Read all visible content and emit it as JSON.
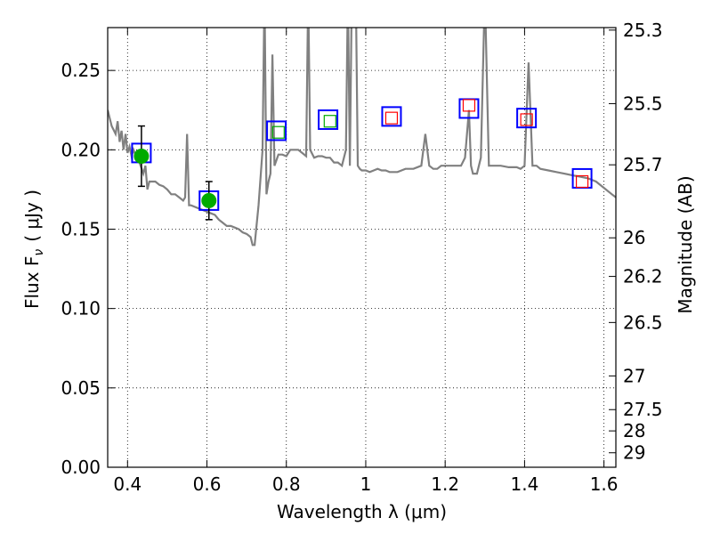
{
  "chart_data": {
    "type": "scatter",
    "xlabel": "Wavelength  λ (μm)",
    "ylabel": "Flux  F",
    "ylabel_subscript": "ν",
    "ylabel_units": "( μJy )",
    "y2label": "Magnitude (AB)",
    "xlim": [
      0.35,
      1.63
    ],
    "ylim": [
      0.0,
      0.277
    ],
    "grid": true,
    "x_ticks": [
      0.4,
      0.6,
      0.8,
      1.0,
      1.2,
      1.4,
      1.6
    ],
    "x_tick_labels": [
      "0.4",
      "0.6",
      "0.8",
      "1",
      "1.2",
      "1.4",
      "1.6"
    ],
    "y_ticks": [
      0.0,
      0.05,
      0.1,
      0.15,
      0.2,
      0.25
    ],
    "y_tick_labels": [
      "0.00",
      "0.05",
      "0.10",
      "0.15",
      "0.20",
      "0.25"
    ],
    "mag_ticks": [
      25.3,
      25.5,
      25.7,
      26,
      26.2,
      26.5,
      27,
      27.5,
      28,
      29
    ],
    "mag_tick_labels": [
      "25.3",
      "25.5",
      "25.7",
      "26",
      "26.2",
      "26.5",
      "27",
      "27.5",
      "28",
      "29"
    ],
    "colors": {
      "model": "#808080",
      "observed": "#00aa00",
      "model_photometry": "#0000ff",
      "predicted_green": "#00aa00",
      "predicted_red": "#ff0000"
    },
    "model_spectrum": [
      [
        0.35,
        0.225
      ],
      [
        0.36,
        0.215
      ],
      [
        0.37,
        0.21
      ],
      [
        0.375,
        0.218
      ],
      [
        0.38,
        0.205
      ],
      [
        0.385,
        0.212
      ],
      [
        0.39,
        0.2
      ],
      [
        0.395,
        0.21
      ],
      [
        0.4,
        0.198
      ],
      [
        0.405,
        0.202
      ],
      [
        0.41,
        0.196
      ],
      [
        0.415,
        0.2
      ],
      [
        0.42,
        0.197
      ],
      [
        0.43,
        0.192
      ],
      [
        0.44,
        0.185
      ],
      [
        0.445,
        0.19
      ],
      [
        0.45,
        0.175
      ],
      [
        0.455,
        0.18
      ],
      [
        0.46,
        0.18
      ],
      [
        0.47,
        0.18
      ],
      [
        0.48,
        0.178
      ],
      [
        0.49,
        0.177
      ],
      [
        0.5,
        0.175
      ],
      [
        0.51,
        0.172
      ],
      [
        0.52,
        0.172
      ],
      [
        0.53,
        0.17
      ],
      [
        0.54,
        0.168
      ],
      [
        0.545,
        0.17
      ],
      [
        0.55,
        0.21
      ],
      [
        0.555,
        0.165
      ],
      [
        0.56,
        0.165
      ],
      [
        0.57,
        0.164
      ],
      [
        0.58,
        0.163
      ],
      [
        0.59,
        0.162
      ],
      [
        0.6,
        0.161
      ],
      [
        0.61,
        0.16
      ],
      [
        0.62,
        0.159
      ],
      [
        0.63,
        0.156
      ],
      [
        0.64,
        0.154
      ],
      [
        0.65,
        0.152
      ],
      [
        0.66,
        0.152
      ],
      [
        0.67,
        0.151
      ],
      [
        0.68,
        0.15
      ],
      [
        0.69,
        0.148
      ],
      [
        0.7,
        0.147
      ],
      [
        0.71,
        0.145
      ],
      [
        0.715,
        0.14
      ],
      [
        0.72,
        0.14
      ],
      [
        0.73,
        0.165
      ],
      [
        0.74,
        0.2
      ],
      [
        0.745,
        0.3
      ],
      [
        0.75,
        0.172
      ],
      [
        0.755,
        0.18
      ],
      [
        0.76,
        0.185
      ],
      [
        0.765,
        0.26
      ],
      [
        0.77,
        0.19
      ],
      [
        0.78,
        0.197
      ],
      [
        0.79,
        0.197
      ],
      [
        0.8,
        0.196
      ],
      [
        0.81,
        0.2
      ],
      [
        0.82,
        0.2
      ],
      [
        0.83,
        0.2
      ],
      [
        0.84,
        0.198
      ],
      [
        0.85,
        0.196
      ],
      [
        0.855,
        0.3
      ],
      [
        0.86,
        0.2
      ],
      [
        0.87,
        0.195
      ],
      [
        0.88,
        0.196
      ],
      [
        0.89,
        0.196
      ],
      [
        0.9,
        0.195
      ],
      [
        0.91,
        0.195
      ],
      [
        0.92,
        0.192
      ],
      [
        0.93,
        0.192
      ],
      [
        0.94,
        0.19
      ],
      [
        0.95,
        0.2
      ],
      [
        0.955,
        0.3
      ],
      [
        0.96,
        0.19
      ],
      [
        0.965,
        0.3
      ],
      [
        0.975,
        0.3
      ],
      [
        0.98,
        0.19
      ],
      [
        0.985,
        0.188
      ],
      [
        0.99,
        0.187
      ],
      [
        1.0,
        0.187
      ],
      [
        1.01,
        0.186
      ],
      [
        1.02,
        0.187
      ],
      [
        1.03,
        0.188
      ],
      [
        1.04,
        0.187
      ],
      [
        1.05,
        0.187
      ],
      [
        1.06,
        0.186
      ],
      [
        1.07,
        0.186
      ],
      [
        1.08,
        0.186
      ],
      [
        1.09,
        0.187
      ],
      [
        1.1,
        0.188
      ],
      [
        1.12,
        0.188
      ],
      [
        1.14,
        0.19
      ],
      [
        1.15,
        0.21
      ],
      [
        1.16,
        0.19
      ],
      [
        1.17,
        0.188
      ],
      [
        1.18,
        0.188
      ],
      [
        1.19,
        0.19
      ],
      [
        1.2,
        0.19
      ],
      [
        1.22,
        0.19
      ],
      [
        1.24,
        0.19
      ],
      [
        1.25,
        0.195
      ],
      [
        1.26,
        0.225
      ],
      [
        1.265,
        0.19
      ],
      [
        1.27,
        0.185
      ],
      [
        1.28,
        0.185
      ],
      [
        1.29,
        0.195
      ],
      [
        1.3,
        0.3
      ],
      [
        1.31,
        0.19
      ],
      [
        1.32,
        0.19
      ],
      [
        1.34,
        0.19
      ],
      [
        1.36,
        0.189
      ],
      [
        1.38,
        0.189
      ],
      [
        1.39,
        0.188
      ],
      [
        1.4,
        0.19
      ],
      [
        1.41,
        0.255
      ],
      [
        1.42,
        0.19
      ],
      [
        1.43,
        0.19
      ],
      [
        1.44,
        0.188
      ],
      [
        1.46,
        0.187
      ],
      [
        1.48,
        0.186
      ],
      [
        1.5,
        0.185
      ],
      [
        1.52,
        0.184
      ],
      [
        1.54,
        0.183
      ],
      [
        1.56,
        0.182
      ],
      [
        1.58,
        0.18
      ],
      [
        1.6,
        0.176
      ],
      [
        1.62,
        0.172
      ],
      [
        1.63,
        0.17
      ]
    ],
    "observed": [
      {
        "x": 0.435,
        "y": 0.196,
        "yerr": 0.019
      },
      {
        "x": 0.605,
        "y": 0.168,
        "yerr": 0.012
      }
    ],
    "model_photometry": [
      {
        "x": 0.435,
        "y": 0.198
      },
      {
        "x": 0.605,
        "y": 0.168
      },
      {
        "x": 0.775,
        "y": 0.212
      },
      {
        "x": 0.905,
        "y": 0.219
      },
      {
        "x": 1.065,
        "y": 0.221
      },
      {
        "x": 1.26,
        "y": 0.226
      },
      {
        "x": 1.405,
        "y": 0.22
      },
      {
        "x": 1.545,
        "y": 0.182
      }
    ],
    "predicted_green": [
      {
        "x": 0.78,
        "y": 0.211
      },
      {
        "x": 0.91,
        "y": 0.218
      }
    ],
    "predicted_red": [
      {
        "x": 1.065,
        "y": 0.22
      },
      {
        "x": 1.26,
        "y": 0.228
      },
      {
        "x": 1.405,
        "y": 0.219
      },
      {
        "x": 1.545,
        "y": 0.18
      }
    ]
  }
}
